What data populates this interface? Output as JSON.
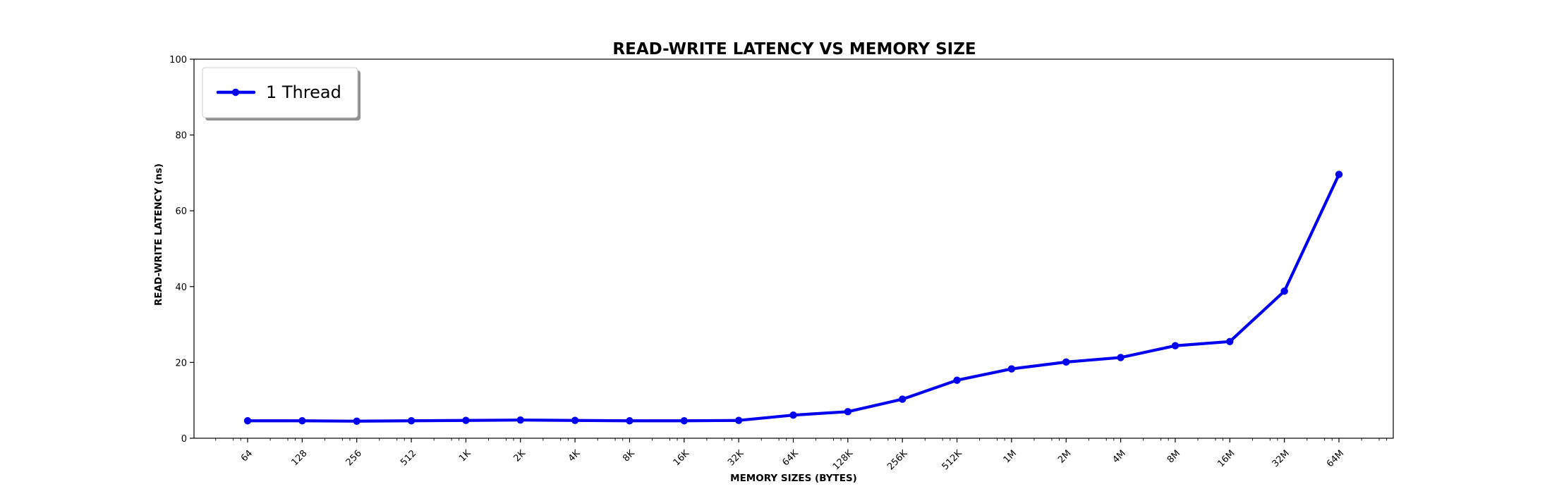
{
  "chart_data": {
    "type": "line",
    "title": "READ-WRITE LATENCY VS MEMORY SIZE",
    "xlabel": "MEMORY SIZES (BYTES)",
    "ylabel": "READ-WRITE LATENCY (ns)",
    "categories": [
      "64",
      "128",
      "256",
      "512",
      "1K",
      "2K",
      "4K",
      "8K",
      "16K",
      "32K",
      "64K",
      "128K",
      "256K",
      "512K",
      "1M",
      "2M",
      "4M",
      "8M",
      "16M",
      "32M",
      "64M"
    ],
    "series": [
      {
        "name": "1 Thread",
        "color": "#0000ee",
        "values": [
          4.6,
          4.6,
          4.5,
          4.6,
          4.7,
          4.8,
          4.7,
          4.6,
          4.6,
          4.7,
          6.1,
          7.0,
          10.3,
          15.3,
          18.3,
          20.1,
          21.3,
          24.4,
          25.5,
          38.8,
          69.6
        ]
      }
    ],
    "ylim": [
      0,
      100
    ],
    "yticks": [
      "0",
      "20",
      "40",
      "60",
      "80",
      "100"
    ],
    "x_scale": "log2",
    "grid": false,
    "legend_position": "top-left"
  }
}
